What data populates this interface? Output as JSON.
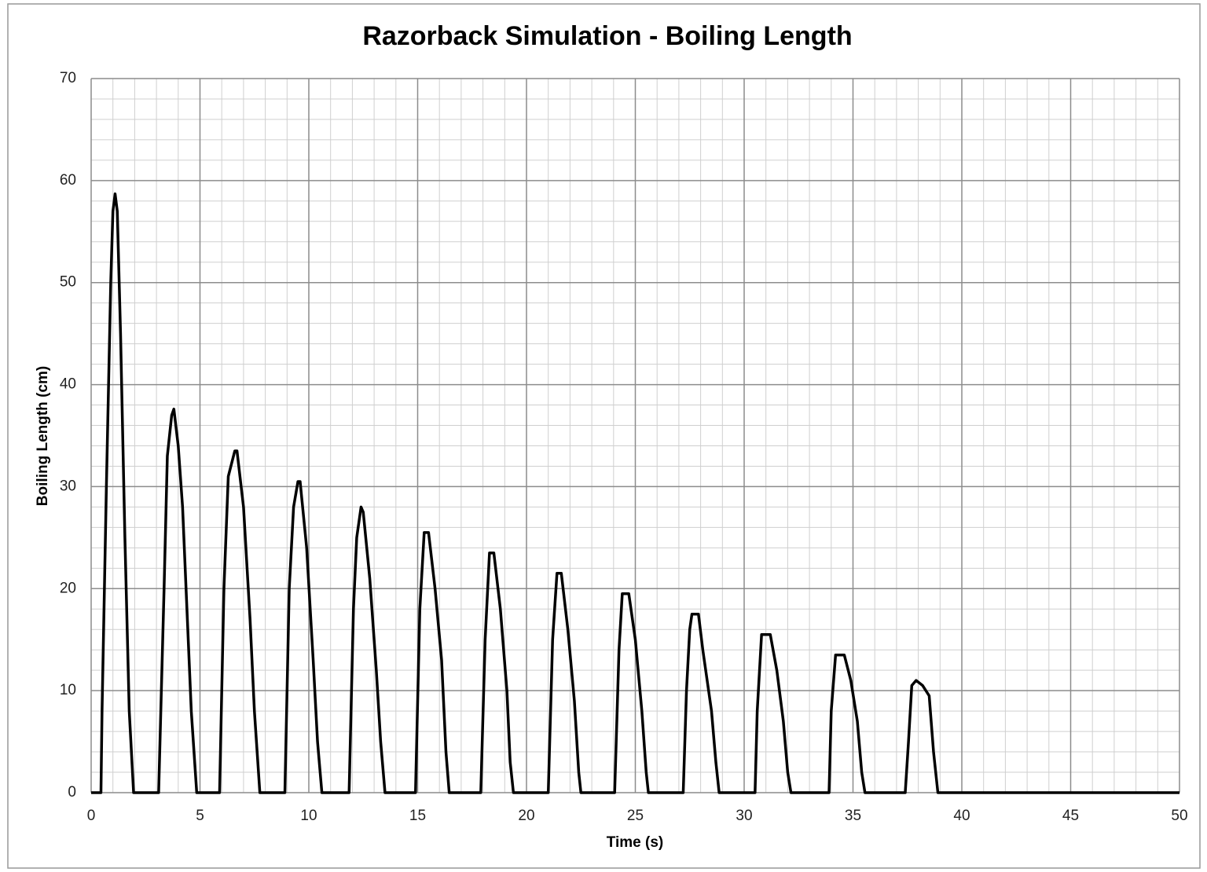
{
  "chart_data": {
    "type": "line",
    "title": "Razorback Simulation - Boiling Length",
    "xlabel": "Time (s)",
    "ylabel": "Boiling Length (cm)",
    "color": "#000000",
    "x": [
      0,
      0.45,
      0.5,
      0.7,
      0.9,
      1.0,
      1.1,
      1.2,
      1.35,
      1.55,
      1.75,
      1.95,
      3.1,
      3.35,
      3.5,
      3.7,
      3.8,
      4.0,
      4.2,
      4.4,
      4.6,
      4.85,
      5.9,
      6.1,
      6.3,
      6.6,
      6.7,
      7.0,
      7.3,
      7.5,
      7.75,
      8.9,
      9.1,
      9.3,
      9.5,
      9.6,
      9.9,
      10.2,
      10.4,
      10.6,
      11.85,
      12.05,
      12.2,
      12.4,
      12.5,
      12.8,
      13.1,
      13.3,
      13.5,
      14.9,
      15.1,
      15.3,
      15.5,
      15.8,
      16.1,
      16.3,
      16.45,
      17.9,
      18.1,
      18.3,
      18.5,
      18.8,
      19.1,
      19.25,
      19.4,
      21.0,
      21.2,
      21.4,
      21.6,
      21.9,
      22.2,
      22.4,
      22.5,
      24.05,
      24.25,
      24.4,
      24.7,
      25.0,
      25.3,
      25.5,
      25.6,
      27.2,
      27.35,
      27.5,
      27.6,
      27.9,
      28.1,
      28.5,
      28.7,
      28.85,
      30.5,
      30.6,
      30.8,
      31.2,
      31.5,
      31.8,
      32.0,
      32.15,
      33.9,
      34.0,
      34.2,
      34.6,
      34.9,
      35.2,
      35.4,
      35.55,
      37.4,
      37.55,
      37.7,
      37.9,
      38.2,
      38.5,
      38.7,
      38.9,
      50
    ],
    "values": [
      0,
      0,
      8,
      30,
      50,
      57,
      58.7,
      57,
      45,
      25,
      8,
      0,
      0,
      20,
      33,
      37,
      37.6,
      34,
      28,
      18,
      8,
      0,
      0,
      20,
      31,
      33.5,
      33.5,
      28,
      17,
      8,
      0,
      0,
      20,
      28,
      30.5,
      30.5,
      24,
      13,
      5,
      0,
      0,
      18,
      25,
      28,
      27.5,
      21,
      12,
      5,
      0,
      0,
      18,
      25.5,
      25.5,
      20,
      13,
      4,
      0,
      0,
      15,
      23.5,
      23.5,
      18,
      10,
      3,
      0,
      0,
      15,
      21.5,
      21.5,
      16,
      9,
      2,
      0,
      0,
      14,
      19.5,
      19.5,
      15,
      8,
      2,
      0,
      0,
      10,
      16,
      17.5,
      17.5,
      14,
      8,
      3,
      0,
      0,
      8,
      15.5,
      15.5,
      12,
      7,
      2,
      0,
      0,
      8,
      13.5,
      13.5,
      11,
      7,
      2,
      0,
      0,
      5,
      10.5,
      11,
      10.5,
      9.5,
      4,
      0,
      0
    ],
    "xlim": [
      0,
      50
    ],
    "xticks": [
      0,
      5,
      10,
      15,
      20,
      25,
      30,
      35,
      40,
      45,
      50
    ],
    "ylim": [
      0,
      70
    ],
    "yticks": [
      0,
      10,
      20,
      30,
      40,
      50,
      60,
      70
    ],
    "grid": true,
    "minor_grid": true
  }
}
